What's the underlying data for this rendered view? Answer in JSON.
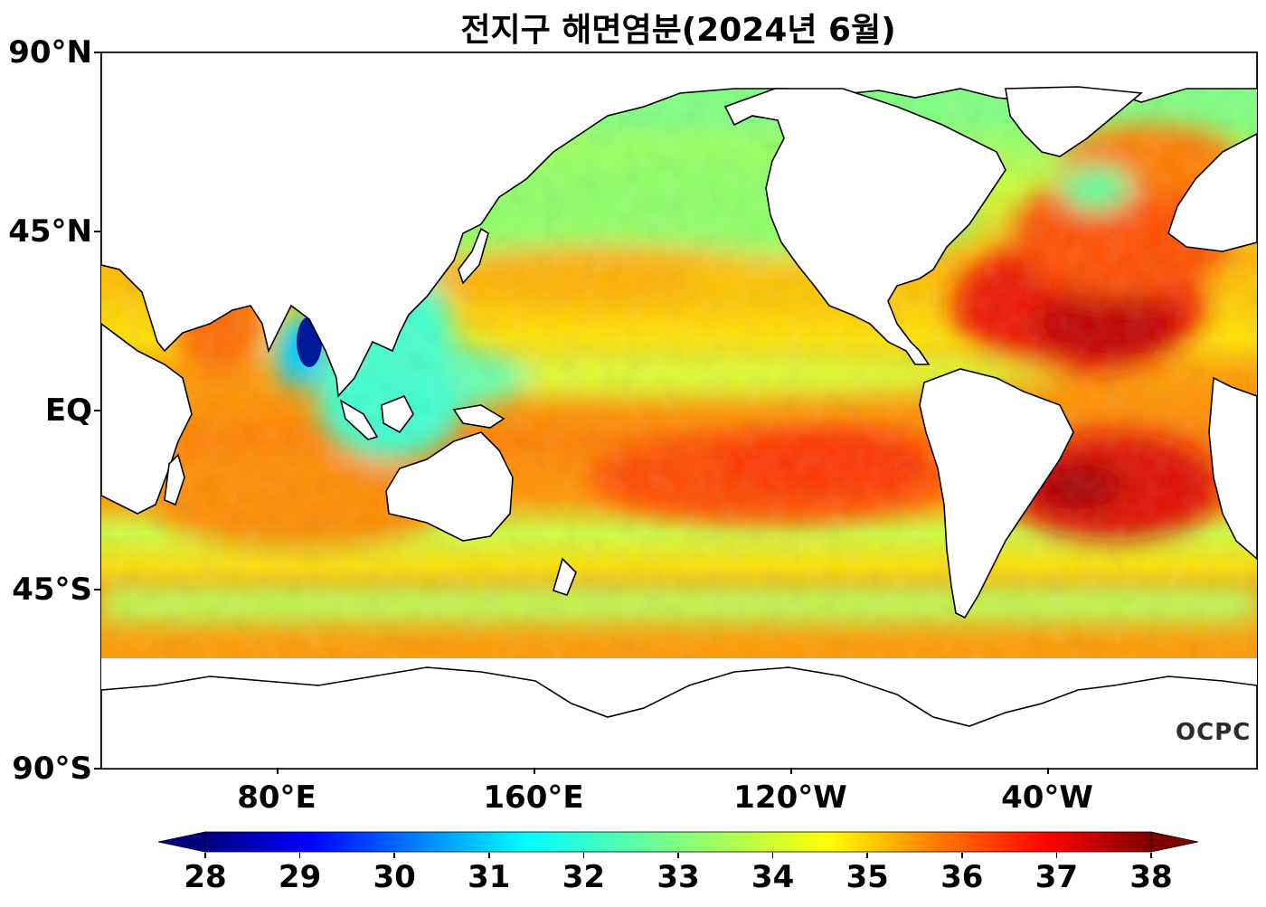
{
  "title": "전지구 해면염분(2024년 6월)",
  "y_axis": {
    "ticks": [
      "90°N",
      "45°N",
      "EQ",
      "45°S",
      "90°S"
    ]
  },
  "x_axis": {
    "ticks": [
      "80°E",
      "160°E",
      "120°W",
      "40°W"
    ]
  },
  "colorbar": {
    "ticks": [
      "28",
      "29",
      "30",
      "31",
      "32",
      "33",
      "34",
      "35",
      "36",
      "37",
      "38"
    ],
    "min": 28,
    "max": 38,
    "extend": "both",
    "colormap": "jet",
    "colors": [
      "#00007f",
      "#0000ff",
      "#007fff",
      "#00ffff",
      "#7fff7f",
      "#ffff00",
      "#ff7f00",
      "#ff0000",
      "#7f0000"
    ]
  },
  "logo_text": "OCPC",
  "colors": {
    "land": "#ffffff",
    "coast": "#000000"
  }
}
